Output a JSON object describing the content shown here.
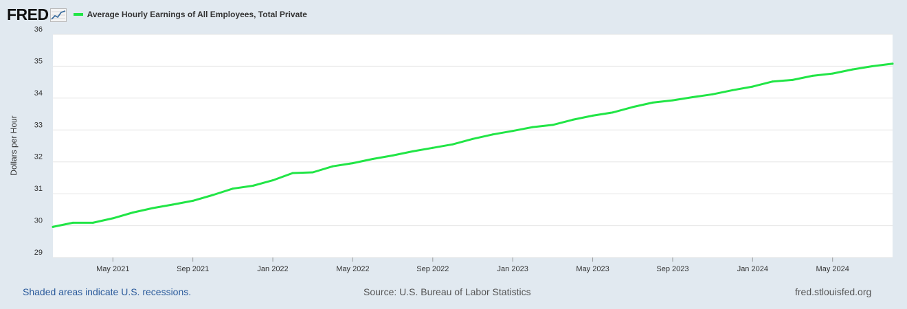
{
  "header": {
    "logo_text": "FRED",
    "logo_icon": "line-chart-icon",
    "series_title": "Average Hourly Earnings of All Employees, Total Private",
    "series_color": "#21e546"
  },
  "footer": {
    "recession_note": "Shaded areas indicate U.S. recessions.",
    "source": "Source: U.S. Bureau of Labor Statistics",
    "site": "fred.stlouisfed.org"
  },
  "chart_data": {
    "type": "line",
    "title": "Average Hourly Earnings of All Employees, Total Private",
    "ylabel": "Dollars per Hour",
    "xlabel": "",
    "ylim": [
      29,
      36
    ],
    "yticks": [
      29,
      30,
      31,
      32,
      33,
      34,
      35,
      36
    ],
    "x_start": "2021-02",
    "x_end": "2024-08",
    "xticks": [
      {
        "date": "2021-05",
        "label": "May 2021"
      },
      {
        "date": "2021-09",
        "label": "Sep 2021"
      },
      {
        "date": "2022-01",
        "label": "Jan 2022"
      },
      {
        "date": "2022-05",
        "label": "May 2022"
      },
      {
        "date": "2022-09",
        "label": "Sep 2022"
      },
      {
        "date": "2023-01",
        "label": "Jan 2023"
      },
      {
        "date": "2023-05",
        "label": "May 2023"
      },
      {
        "date": "2023-09",
        "label": "Sep 2023"
      },
      {
        "date": "2024-01",
        "label": "Jan 2024"
      },
      {
        "date": "2024-05",
        "label": "May 2024"
      }
    ],
    "grid": true,
    "series": [
      {
        "name": "Average Hourly Earnings of All Employees, Total Private",
        "color": "#21e546",
        "x": [
          "2021-02",
          "2021-03",
          "2021-04",
          "2021-05",
          "2021-06",
          "2021-07",
          "2021-08",
          "2021-09",
          "2021-10",
          "2021-11",
          "2021-12",
          "2022-01",
          "2022-02",
          "2022-03",
          "2022-04",
          "2022-05",
          "2022-06",
          "2022-07",
          "2022-08",
          "2022-09",
          "2022-10",
          "2022-11",
          "2022-12",
          "2023-01",
          "2023-02",
          "2023-03",
          "2023-04",
          "2023-05",
          "2023-06",
          "2023-07",
          "2023-08",
          "2023-09",
          "2023-10",
          "2023-11",
          "2023-12",
          "2024-01",
          "2024-02",
          "2024-03",
          "2024-04",
          "2024-05",
          "2024-06",
          "2024-07",
          "2024-08"
        ],
        "values": [
          29.96,
          30.09,
          30.09,
          30.23,
          30.41,
          30.55,
          30.66,
          30.78,
          30.96,
          31.16,
          31.25,
          31.42,
          31.65,
          31.67,
          31.86,
          31.96,
          32.09,
          32.2,
          32.33,
          32.44,
          32.55,
          32.72,
          32.86,
          32.97,
          33.09,
          33.16,
          33.32,
          33.45,
          33.55,
          33.72,
          33.86,
          33.93,
          34.03,
          34.12,
          34.25,
          34.36,
          34.52,
          34.57,
          34.7,
          34.77,
          34.9,
          35.0,
          35.08
        ]
      }
    ]
  }
}
